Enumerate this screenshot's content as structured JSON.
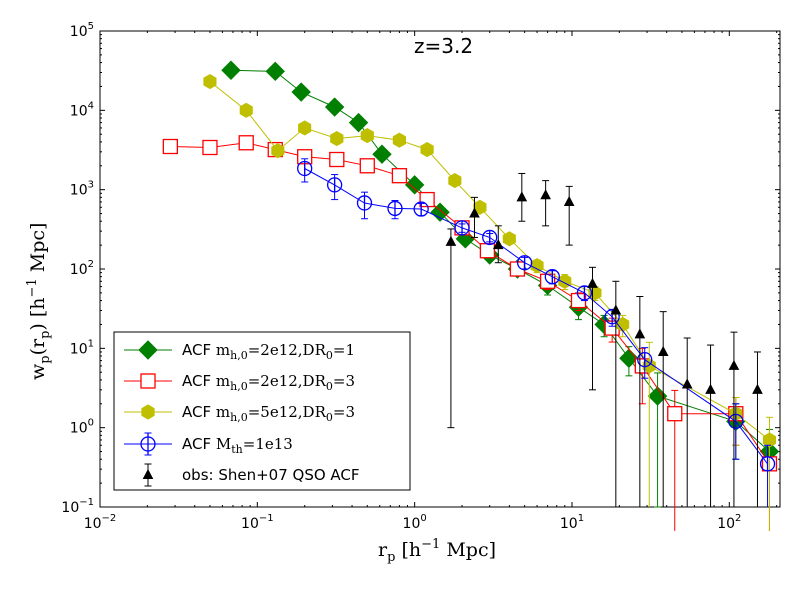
{
  "chart_data": {
    "type": "scatter",
    "title": "",
    "annotation": "z=3.2",
    "xscale": "log",
    "yscale": "log",
    "xlim": [
      0.01,
      210
    ],
    "ylim": [
      0.1,
      100000
    ],
    "xlabel": {
      "main": "r",
      "sub": "p",
      "unit": "[h",
      "unit_sup": "−1",
      "unit_end": " Mpc]"
    },
    "ylabel": {
      "main": "w",
      "sub": "p",
      "paren_open": "(r",
      "paren_sub": "p",
      "paren_close": ")",
      "unit": "[h",
      "unit_sup": "−1",
      "unit_end": " Mpc]"
    },
    "xticks": [
      {
        "value": 0.01,
        "base": "10",
        "exp": "−2"
      },
      {
        "value": 0.1,
        "base": "10",
        "exp": "−1"
      },
      {
        "value": 1,
        "base": "10",
        "exp": "0"
      },
      {
        "value": 10,
        "base": "10",
        "exp": "1"
      },
      {
        "value": 100,
        "base": "10",
        "exp": "2"
      }
    ],
    "yticks": [
      {
        "value": 0.1,
        "base": "10",
        "exp": "−1"
      },
      {
        "value": 1,
        "base": "10",
        "exp": "0"
      },
      {
        "value": 10,
        "base": "10",
        "exp": "1"
      },
      {
        "value": 100,
        "base": "10",
        "exp": "2"
      },
      {
        "value": 1000,
        "base": "10",
        "exp": "3"
      },
      {
        "value": 10000,
        "base": "10",
        "exp": "4"
      },
      {
        "value": 100000,
        "base": "10",
        "exp": "5"
      }
    ],
    "legend_position": "lower-left",
    "series": [
      {
        "name": "ACF m_h,0=2e12,DR_0=1",
        "legend": {
          "prefix": "ACF ",
          "m1": "m",
          "s1": "h,0",
          "m2": "=2e12,DR",
          "s2": "0",
          "m3": "=1"
        },
        "color": "#007f00",
        "marker": "diamond",
        "filled": true,
        "x": [
          0.068,
          0.13,
          0.19,
          0.31,
          0.44,
          0.62,
          1.0,
          1.45,
          2.1,
          3.0,
          4.5,
          7.0,
          11.0,
          16.0,
          23.0,
          35.0,
          110.0,
          180.0
        ],
        "y": [
          32000,
          31000,
          17000,
          11000,
          7000,
          2800,
          1150,
          520,
          240,
          150,
          100,
          62,
          33,
          20,
          7.5,
          2.5,
          1.2,
          0.5
        ],
        "yerr": [
          0,
          0,
          0,
          0,
          0,
          0,
          0,
          60,
          30,
          20,
          15,
          15,
          10,
          6,
          3,
          2.4,
          0.8,
          0.45
        ]
      },
      {
        "name": "ACF m_h,0=2e12,DR_0=3",
        "legend": {
          "prefix": "ACF ",
          "m1": "m",
          "s1": "h,0",
          "m2": "=2e12,DR",
          "s2": "0",
          "m3": "=3"
        },
        "color": "#ff0000",
        "marker": "square",
        "filled": false,
        "x": [
          0.028,
          0.05,
          0.085,
          0.13,
          0.2,
          0.32,
          0.5,
          0.8,
          1.2,
          2.0,
          2.9,
          4.5,
          7.0,
          11.0,
          18.0,
          28.0,
          45.0,
          110.0,
          180.0
        ],
        "y": [
          3500,
          3400,
          3900,
          3200,
          2600,
          2400,
          2000,
          1500,
          750,
          330,
          170,
          100,
          70,
          40,
          18,
          6,
          1.5,
          1.5,
          0.35
        ],
        "yerr": [
          0,
          0,
          0,
          0,
          0,
          0,
          0,
          0,
          0,
          40,
          25,
          15,
          15,
          10,
          6,
          4,
          1.45,
          0.9,
          0.33
        ]
      },
      {
        "name": "ACF m_h,0=5e12,DR_0=3",
        "legend": {
          "prefix": "ACF ",
          "m1": "m",
          "s1": "h,0",
          "m2": "=5e12,DR",
          "s2": "0",
          "m3": "=3"
        },
        "color": "#bfbf00",
        "marker": "hexagon",
        "filled": true,
        "x": [
          0.05,
          0.085,
          0.135,
          0.2,
          0.32,
          0.5,
          0.8,
          1.2,
          1.8,
          2.6,
          4.0,
          6.0,
          9.0,
          14.0,
          21.0,
          31.0,
          110.0,
          180.0
        ],
        "y": [
          23000,
          10000,
          3100,
          6000,
          4400,
          4800,
          4200,
          3200,
          1300,
          600,
          240,
          110,
          70,
          50,
          20,
          6,
          1.5,
          0.7
        ],
        "yerr": [
          0,
          0,
          0,
          0,
          0,
          0,
          0,
          0,
          0,
          0,
          30,
          20,
          15,
          10,
          6,
          5.9,
          0.9,
          0.65
        ]
      },
      {
        "name": "ACF M_th=1e13",
        "legend": {
          "prefix": "ACF ",
          "m1": "M",
          "s1": "th",
          "m2": "=1e13",
          "s2": "",
          "m3": ""
        },
        "color": "#0000ff",
        "marker": "circle-errbar",
        "filled": false,
        "x": [
          0.2,
          0.31,
          0.48,
          0.75,
          1.1,
          2.0,
          3.0,
          5.0,
          7.5,
          12.0,
          18.0,
          29.0,
          110.0,
          175.0
        ],
        "y": [
          1850,
          1150,
          680,
          580,
          570,
          330,
          250,
          120,
          80,
          50,
          25,
          7.2,
          1.2,
          0.35
        ],
        "yerr": [
          600,
          400,
          250,
          150,
          100,
          40,
          30,
          20,
          15,
          10,
          6,
          3,
          0.8,
          0.25
        ]
      },
      {
        "name": "obs: Shen+07 QSO ACF",
        "legend": {
          "prefix": "obs: Shen+07 QSO ACF",
          "m1": "",
          "s1": "",
          "m2": "",
          "s2": "",
          "m3": ""
        },
        "color": "#000000",
        "marker": "triangle-up",
        "filled": true,
        "x": [
          1.7,
          2.4,
          3.4,
          4.8,
          6.8,
          9.6,
          13.5,
          19.0,
          27.0,
          38.0,
          54.0,
          76.0,
          107.0,
          151.0
        ],
        "y": [
          220,
          500,
          200,
          800,
          850,
          700,
          65,
          30,
          15,
          9,
          3.5,
          3,
          6,
          3
        ],
        "yerr_low": [
          219,
          250,
          80,
          400,
          500,
          500,
          62,
          29.9,
          14.9,
          8.9,
          3.4,
          2.9,
          5.9,
          2.9
        ],
        "yerr_high": [
          100,
          300,
          150,
          800,
          450,
          400,
          40,
          40,
          30,
          20,
          10,
          8,
          10,
          6
        ]
      }
    ]
  }
}
